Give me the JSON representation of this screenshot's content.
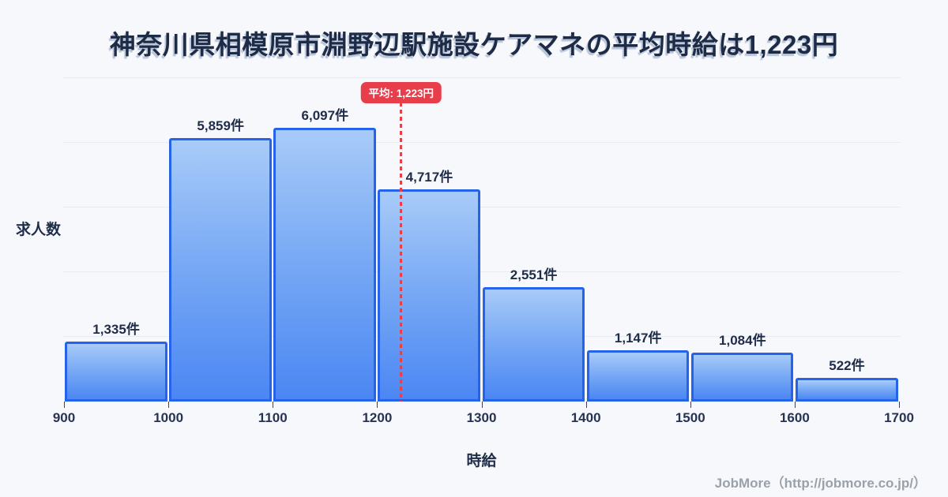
{
  "title": "神奈川県相模原市淵野辺駅施設ケアマネの平均時給は1,223円",
  "chart_data": {
    "type": "bar",
    "subtype": "histogram",
    "title": "神奈川県相模原市淵野辺駅施設ケアマネの平均時給は1,223円",
    "xlabel": "時給",
    "ylabel": "求人数",
    "bin_edges": [
      900,
      1000,
      1100,
      1200,
      1300,
      1400,
      1500,
      1600,
      1700
    ],
    "x_tick_labels": [
      "900",
      "1000",
      "1100",
      "1200",
      "1300",
      "1400",
      "1500",
      "1600",
      "1700"
    ],
    "values": [
      1335,
      5859,
      6097,
      4717,
      2551,
      1147,
      1084,
      522
    ],
    "value_labels": [
      "1,335件",
      "5,859件",
      "6,097件",
      "4,717件",
      "2,551件",
      "1,147件",
      "1,084件",
      "522件"
    ],
    "ylim": [
      0,
      7200
    ],
    "grid": true,
    "grid_divisions": 5,
    "y_tick_labels_visible": false,
    "legend": "none",
    "average_marker": {
      "value": 1223,
      "label": "平均: 1,223円",
      "style": "dashed-vertical-line"
    }
  },
  "footer": {
    "credit": "JobMore（http://jobmore.co.jp/）"
  },
  "colors": {
    "background": "#f7f8fb",
    "title_text": "#1e2b47",
    "bar_border": "#2563eb",
    "bar_fill_top": "#a8cbf8",
    "bar_fill_bottom": "#4b87f3",
    "average_red": "#e83e4b",
    "gridline": "#e8ebf1",
    "axis_text": "#1f2c49",
    "footer_text": "#9aa1ab"
  }
}
